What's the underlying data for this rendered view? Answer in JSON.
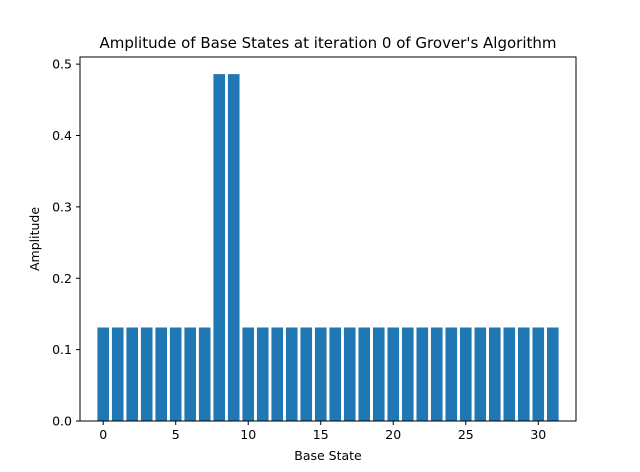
{
  "chart_data": {
    "type": "bar",
    "title": "Amplitude of Base States at iteration 0 of Grover's Algorithm",
    "xlabel": "Base State",
    "ylabel": "Amplitude",
    "categories": [
      0,
      1,
      2,
      3,
      4,
      5,
      6,
      7,
      8,
      9,
      10,
      11,
      12,
      13,
      14,
      15,
      16,
      17,
      18,
      19,
      20,
      21,
      22,
      23,
      24,
      25,
      26,
      27,
      28,
      29,
      30,
      31
    ],
    "values": [
      0.131,
      0.131,
      0.131,
      0.131,
      0.131,
      0.131,
      0.131,
      0.131,
      0.486,
      0.486,
      0.131,
      0.131,
      0.131,
      0.131,
      0.131,
      0.131,
      0.131,
      0.131,
      0.131,
      0.131,
      0.131,
      0.131,
      0.131,
      0.131,
      0.131,
      0.131,
      0.131,
      0.131,
      0.131,
      0.131,
      0.131,
      0.131
    ],
    "xlim": [
      -1.6,
      32.6
    ],
    "ylim": [
      0,
      0.51
    ],
    "xticks": [
      0,
      5,
      10,
      15,
      20,
      25,
      30
    ],
    "yticks": [
      "0.0",
      "0.1",
      "0.2",
      "0.3",
      "0.4",
      "0.5"
    ],
    "grid": false,
    "bar_color": "#1f77b4"
  }
}
